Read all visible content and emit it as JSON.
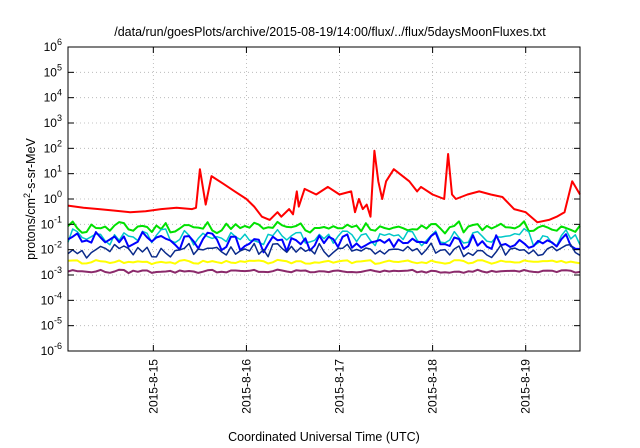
{
  "chart_data": {
    "type": "line",
    "title": "/data/run/goesPlots/archive/2015-08-19/14:00/flux/../flux/5daysMoonFluxes.txt",
    "xlabel": "Coordinated Universal Time (UTC)",
    "ylabel": {
      "prefix": "protons/cm",
      "sup": "2",
      "suffix": "-s-sr-MeV"
    },
    "yscale": "log",
    "ylim": [
      1e-06,
      1000000.0
    ],
    "y_ticks": [
      {
        "value": 1e-06,
        "base": "10",
        "exp": "-6"
      },
      {
        "value": 1e-05,
        "base": "10",
        "exp": "-5"
      },
      {
        "value": 0.0001,
        "base": "10",
        "exp": "-4"
      },
      {
        "value": 0.001,
        "base": "10",
        "exp": "-3"
      },
      {
        "value": 0.01,
        "base": "10",
        "exp": "-2"
      },
      {
        "value": 0.1,
        "base": "10",
        "exp": "-1"
      },
      {
        "value": 1,
        "base": "10",
        "exp": "0"
      },
      {
        "value": 10,
        "base": "10",
        "exp": "1"
      },
      {
        "value": 100,
        "base": "10",
        "exp": "2"
      },
      {
        "value": 1000,
        "base": "10",
        "exp": "3"
      },
      {
        "value": 10000,
        "base": "10",
        "exp": "4"
      },
      {
        "value": 100000,
        "base": "10",
        "exp": "5"
      },
      {
        "value": 1000000,
        "base": "10",
        "exp": "6"
      }
    ],
    "xlim": [
      "2015-08-14T02:00",
      "2015-08-19T14:00"
    ],
    "x_ticks": [
      {
        "value": "2015-08-15T00:00",
        "label": "2015-8-15"
      },
      {
        "value": "2015-08-16T00:00",
        "label": "2015-8-16"
      },
      {
        "value": "2015-08-17T00:00",
        "label": "2015-8-17"
      },
      {
        "value": "2015-08-18T00:00",
        "label": "2015-8-18"
      },
      {
        "value": "2015-08-19T00:00",
        "label": "2015-8-19"
      }
    ],
    "grid": true,
    "series": [
      {
        "color": "#ff0000",
        "width": 2,
        "points": [
          [
            "2015-08-14T02:00",
            0.55
          ],
          [
            "2015-08-14T06:00",
            0.45
          ],
          [
            "2015-08-14T10:00",
            0.4
          ],
          [
            "2015-08-14T14:00",
            0.35
          ],
          [
            "2015-08-14T18:00",
            0.3
          ],
          [
            "2015-08-14T22:00",
            0.33
          ],
          [
            "2015-08-15T02:00",
            0.4
          ],
          [
            "2015-08-15T06:00",
            0.45
          ],
          [
            "2015-08-15T10:00",
            0.4
          ],
          [
            "2015-08-15T11:00",
            0.45
          ],
          [
            "2015-08-15T12:00",
            15
          ],
          [
            "2015-08-15T13:30",
            0.6
          ],
          [
            "2015-08-15T15:00",
            8
          ],
          [
            "2015-08-15T18:00",
            4
          ],
          [
            "2015-08-15T21:00",
            2
          ],
          [
            "2015-08-16T00:00",
            1.0
          ],
          [
            "2015-08-16T02:00",
            0.5
          ],
          [
            "2015-08-16T04:00",
            0.2
          ],
          [
            "2015-08-16T06:00",
            0.15
          ],
          [
            "2015-08-16T08:00",
            0.3
          ],
          [
            "2015-08-16T09:00",
            0.2
          ],
          [
            "2015-08-16T11:00",
            0.4
          ],
          [
            "2015-08-16T12:00",
            0.25
          ],
          [
            "2015-08-16T13:00",
            2.0
          ],
          [
            "2015-08-16T13:30",
            0.5
          ],
          [
            "2015-08-16T15:00",
            2.5
          ],
          [
            "2015-08-16T18:00",
            1.5
          ],
          [
            "2015-08-16T21:00",
            3
          ],
          [
            "2015-08-17T00:00",
            1.5
          ],
          [
            "2015-08-17T03:00",
            2.0
          ],
          [
            "2015-08-17T04:00",
            0.3
          ],
          [
            "2015-08-17T05:00",
            1.0
          ],
          [
            "2015-08-17T06:00",
            0.4
          ],
          [
            "2015-08-17T07:00",
            0.6
          ],
          [
            "2015-08-17T08:00",
            0.2
          ],
          [
            "2015-08-17T09:00",
            80
          ],
          [
            "2015-08-17T10:00",
            5
          ],
          [
            "2015-08-17T11:00",
            1.0
          ],
          [
            "2015-08-17T12:00",
            5
          ],
          [
            "2015-08-17T14:00",
            15
          ],
          [
            "2015-08-17T18:00",
            5
          ],
          [
            "2015-08-17T20:00",
            2
          ],
          [
            "2015-08-17T21:00",
            3
          ],
          [
            "2015-08-18T00:00",
            1.5
          ],
          [
            "2015-08-18T03:00",
            1.0
          ],
          [
            "2015-08-18T04:00",
            60
          ],
          [
            "2015-08-18T05:00",
            1.5
          ],
          [
            "2015-08-18T06:00",
            1.0
          ],
          [
            "2015-08-18T09:00",
            1.5
          ],
          [
            "2015-08-18T12:00",
            2.0
          ],
          [
            "2015-08-18T15:00",
            1.5
          ],
          [
            "2015-08-18T18:00",
            1.2
          ],
          [
            "2015-08-18T21:00",
            0.4
          ],
          [
            "2015-08-19T00:00",
            0.3
          ],
          [
            "2015-08-19T03:00",
            0.12
          ],
          [
            "2015-08-19T06:00",
            0.15
          ],
          [
            "2015-08-19T08:00",
            0.2
          ],
          [
            "2015-08-19T10:00",
            0.3
          ],
          [
            "2015-08-19T12:00",
            5
          ],
          [
            "2015-08-19T14:00",
            1.5
          ]
        ]
      },
      {
        "color": "#00e000",
        "width": 2,
        "base": 0.075,
        "amp": 0.18,
        "seed": 11
      },
      {
        "color": "#00c8c8",
        "width": 1.5,
        "base": 0.03,
        "amp": 0.25,
        "seed": 23
      },
      {
        "color": "#0000ff",
        "width": 2,
        "base": 0.02,
        "amp": 0.28,
        "seed": 37
      },
      {
        "color": "#0a2a8a",
        "width": 1.5,
        "base": 0.009,
        "amp": 0.22,
        "seed": 51
      },
      {
        "color": "#ffff00",
        "width": 2,
        "base": 0.0033,
        "amp": 0.06,
        "seed": 67
      },
      {
        "color": "#8b2a6b",
        "width": 2,
        "base": 0.0014,
        "amp": 0.05,
        "seed": 79
      }
    ]
  }
}
